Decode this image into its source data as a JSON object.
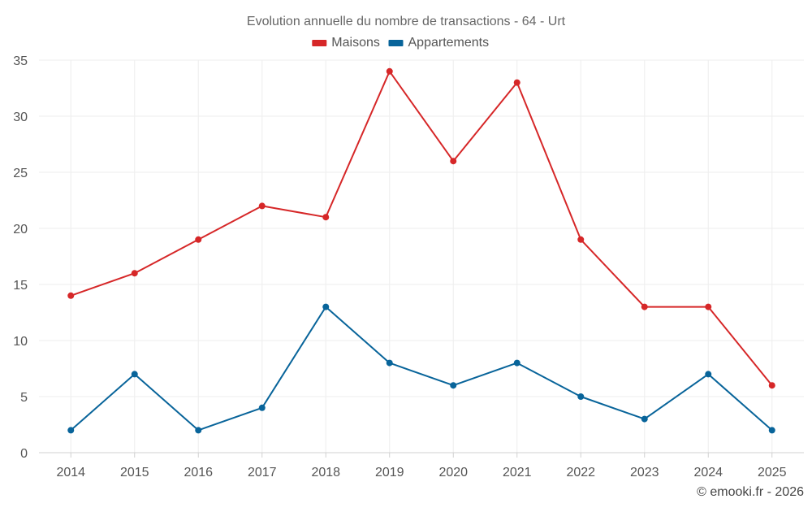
{
  "chart_data": {
    "type": "line",
    "title": "Evolution annuelle du nombre de transactions - 64 - Urt",
    "xlabel": "",
    "ylabel": "",
    "categories": [
      "2014",
      "2015",
      "2016",
      "2017",
      "2018",
      "2019",
      "2020",
      "2021",
      "2022",
      "2023",
      "2024",
      "2025"
    ],
    "ylim": [
      0,
      35
    ],
    "yticks": [
      0,
      5,
      10,
      15,
      20,
      25,
      30,
      35
    ],
    "grid": true,
    "legend_position": "top-center",
    "series": [
      {
        "name": "Maisons",
        "color": "#d62728",
        "values": [
          14,
          16,
          19,
          22,
          21,
          34,
          26,
          33,
          19,
          13,
          13,
          6
        ]
      },
      {
        "name": "Appartements",
        "color": "#08649a",
        "values": [
          2,
          7,
          2,
          4,
          13,
          8,
          6,
          8,
          5,
          3,
          7,
          2
        ]
      }
    ],
    "credit": "© emooki.fr - 2026"
  }
}
